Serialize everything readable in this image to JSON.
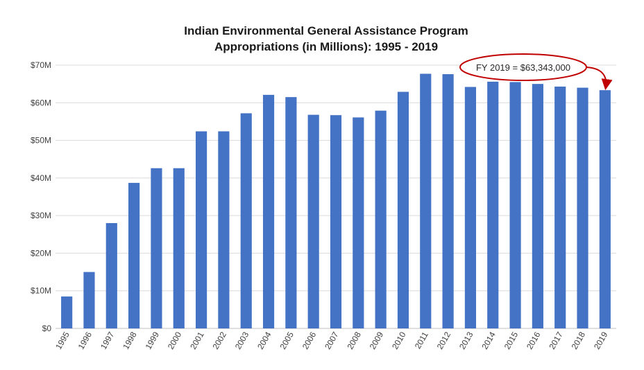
{
  "chart_data": {
    "type": "bar",
    "title": "Indian Environmental General Assistance Program",
    "subtitle": "Appropriations (in Millions): 1995 - 2019",
    "xlabel": "",
    "ylabel": "",
    "categories": [
      "1995",
      "1996",
      "1997",
      "1998",
      "1999",
      "2000",
      "2001",
      "2002",
      "2003",
      "2004",
      "2005",
      "2006",
      "2007",
      "2008",
      "2009",
      "2010",
      "2011",
      "2012",
      "2013",
      "2014",
      "2015",
      "2016",
      "2017",
      "2018",
      "2019"
    ],
    "values": [
      8.5,
      15.0,
      28.0,
      38.7,
      42.6,
      42.6,
      52.4,
      52.4,
      57.2,
      62.1,
      61.5,
      56.8,
      56.7,
      56.1,
      57.9,
      62.9,
      67.7,
      67.6,
      64.2,
      65.6,
      65.5,
      65.0,
      64.3,
      64.0,
      63.343
    ],
    "ylim": [
      0,
      70
    ],
    "yticks": [
      "$0",
      "$10M",
      "$20M",
      "$30M",
      "$40M",
      "$50M",
      "$60M",
      "$70M"
    ],
    "grid": true,
    "bar_color": "#4472C4",
    "annotation": {
      "text": "FY 2019 = $63,343,000",
      "target_category": "2019",
      "ellipse_color": "#C00000",
      "arrow_color": "#C00000"
    }
  }
}
